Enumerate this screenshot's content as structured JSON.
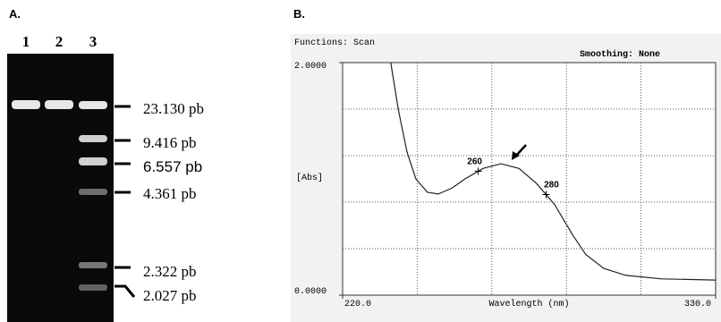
{
  "panel_a": {
    "label": "A.",
    "lanes": [
      "1",
      "2",
      "3"
    ],
    "markers": [
      "23.130 pb",
      "9.416 pb",
      "6.557 pb",
      "4.361 pb",
      "2.322 pb",
      "2.027 pb"
    ]
  },
  "chart_data": {
    "type": "line",
    "label": "B.",
    "header": "Functions: Scan",
    "smoothing": "Smoothing: None",
    "y_label": "[Abs]",
    "x_label": "Wavelength (nm)",
    "x": [
      234.2,
      236.4,
      239,
      241.6,
      245,
      248.2,
      252.2,
      256.1,
      261.4,
      266.7,
      272,
      277.2,
      282.5,
      287.8,
      291.7,
      297,
      303.6,
      314.2,
      330
    ],
    "values": [
      2.0,
      1.6,
      1.23,
      1.0,
      0.885,
      0.87,
      0.92,
      1.0,
      1.09,
      1.13,
      1.09,
      0.96,
      0.78,
      0.52,
      0.35,
      0.23,
      0.17,
      0.14,
      0.13
    ],
    "color": "#222222",
    "xlim": [
      220,
      330
    ],
    "ylim": [
      0,
      2
    ],
    "xticks": [
      {
        "value": 220,
        "label": "220.0"
      },
      {
        "value": 330,
        "label": "330.0"
      }
    ],
    "yticks": [
      {
        "value": 0,
        "label": "0.0000"
      },
      {
        "value": 2,
        "label": "2.0000"
      }
    ],
    "xgrid": [
      242,
      264,
      286,
      308
    ],
    "ygrid": [
      0.4,
      0.8,
      1.2,
      1.6
    ],
    "annotations": [
      {
        "x": 260
      },
      {
        "x": 280
      }
    ]
  }
}
